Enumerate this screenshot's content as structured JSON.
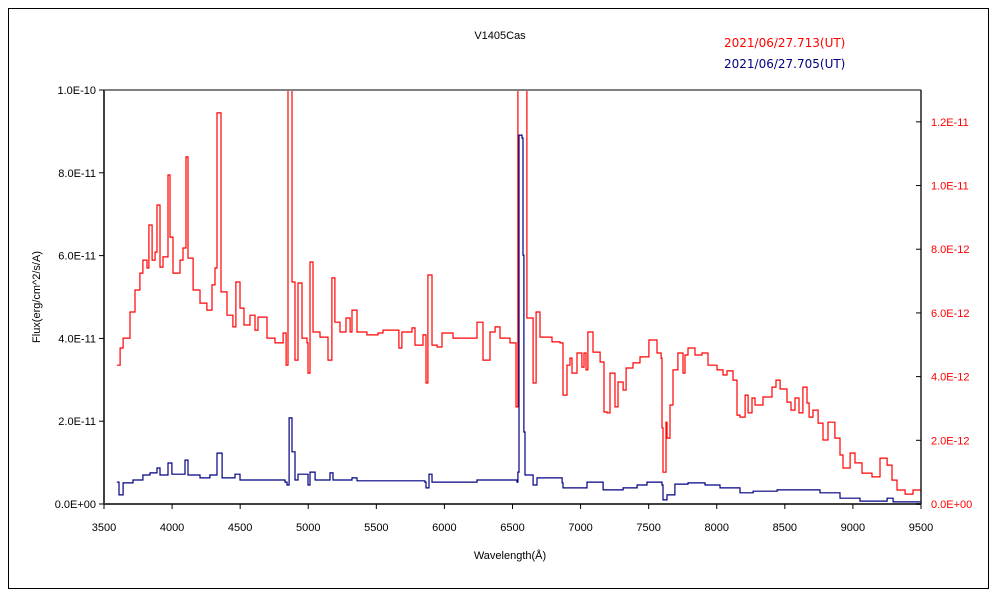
{
  "chart_data": {
    "type": "line",
    "title": "V1405Cas",
    "xlabel": "Wavelength(Å)",
    "ylabel": "Flux(erg/cm^2/s/A)",
    "xlim": [
      3500,
      9500
    ],
    "xticks": [
      3500,
      4000,
      4500,
      5000,
      5500,
      6000,
      6500,
      7000,
      7500,
      8000,
      8500,
      9000,
      9500
    ],
    "xtick_labels": [
      "3500",
      "4000",
      "4500",
      "5000",
      "5500",
      "6000",
      "6500",
      "7000",
      "7500",
      "8000",
      "8500",
      "9000",
      "9500"
    ],
    "ylim_left": [
      0,
      1e-10
    ],
    "yticks_left": [
      0,
      2e-11,
      4e-11,
      6e-11,
      8e-11,
      1e-10
    ],
    "ytick_labels_left": [
      "0.0E+00",
      "2.0E-11",
      "4.0E-11",
      "6.0E-11",
      "8.0E-11",
      "1.0E-10"
    ],
    "ylim_right": [
      0,
      1.3e-11
    ],
    "yticks_right": [
      0,
      2e-12,
      4e-12,
      6e-12,
      8e-12,
      1e-11,
      1.2e-11
    ],
    "ytick_labels_right": [
      "0.0E+00",
      "2.0E-12",
      "4.0E-12",
      "6.0E-12",
      "8.0E-12",
      "1.0E-11",
      "1.2E-11"
    ],
    "grid": false,
    "legend_placement": "top-right",
    "series": [
      {
        "name": "2021/06/27.713(UT)",
        "color": "#ff0000",
        "axis": "right",
        "unit_multiplier": 1e-12,
        "x": [
          3595,
          3618,
          3640,
          3691,
          3728,
          3764,
          3786,
          3816,
          3830,
          3853,
          3875,
          3889,
          3911,
          3933,
          3970,
          3985,
          4007,
          4058,
          4080,
          4102,
          4117,
          4154,
          4205,
          4256,
          4293,
          4315,
          4330,
          4345,
          4359,
          4403,
          4447,
          4469,
          4499,
          4528,
          4572,
          4609,
          4631,
          4697,
          4756,
          4815,
          4837,
          4851,
          4873,
          4881,
          4903,
          4925,
          4954,
          4991,
          4998,
          5013,
          5035,
          5086,
          5145,
          5174,
          5196,
          5233,
          5277,
          5307,
          5321,
          5358,
          5431,
          5512,
          5549,
          5666,
          5688,
          5762,
          5784,
          5843,
          5865,
          5879,
          5909,
          5946,
          5982,
          6063,
          6166,
          6239,
          6283,
          6335,
          6372,
          6408,
          6482,
          6526,
          6540,
          6584,
          6606,
          6651,
          6673,
          6702,
          6790,
          6849,
          6871,
          6900,
          6922,
          6937,
          6974,
          7010,
          7025,
          7040,
          7054,
          7091,
          7143,
          7172,
          7194,
          7216,
          7253,
          7275,
          7312,
          7334,
          7385,
          7436,
          7502,
          7561,
          7591,
          7598,
          7605,
          7627,
          7635,
          7657,
          7679,
          7715,
          7752,
          7767,
          7789,
          7840,
          7892,
          7936,
          8002,
          8046,
          8075,
          8119,
          8149,
          8171,
          8208,
          8230,
          8259,
          8281,
          8340,
          8406,
          8435,
          8465,
          8516,
          8545,
          8575,
          8604,
          8633,
          8663,
          8678,
          8707,
          8744,
          8780,
          8817,
          8868,
          8905,
          8927,
          8979,
          9015,
          9067,
          9140,
          9199,
          9251,
          9287,
          9324,
          9383,
          9441,
          9500
        ],
        "y": [
          4.36,
          4.9,
          5.21,
          6.03,
          6.72,
          7.25,
          7.66,
          7.41,
          8.76,
          7.66,
          7.91,
          9.39,
          7.44,
          7.76,
          10.33,
          8.38,
          7.25,
          7.66,
          8.04,
          10.9,
          7.72,
          6.72,
          6.31,
          6.09,
          6.88,
          7.41,
          12.28,
          12.28,
          6.66,
          5.93,
          5.56,
          6.97,
          6.15,
          5.62,
          5.93,
          5.46,
          5.87,
          5.21,
          5.06,
          5.37,
          4.36,
          16,
          16,
          6.97,
          4.52,
          6.94,
          5.21,
          5.06,
          4.11,
          7.6,
          5.4,
          5.24,
          4.52,
          7.1,
          5.71,
          5.4,
          5.84,
          5.4,
          6.09,
          5.4,
          5.31,
          5.37,
          5.46,
          4.9,
          5.4,
          5.53,
          4.99,
          5.31,
          3.8,
          7.19,
          4.99,
          4.93,
          5.37,
          5.21,
          5.21,
          5.71,
          4.52,
          5.4,
          5.56,
          5.21,
          5.06,
          3.05,
          16,
          16,
          5.84,
          3.8,
          6.03,
          5.24,
          5.09,
          5.06,
          3.42,
          4.36,
          4.58,
          4.11,
          4.74,
          4.3,
          4.74,
          4.21,
          5.4,
          4.77,
          4.46,
          2.89,
          2.86,
          4.11,
          3.05,
          3.83,
          3.58,
          4.27,
          4.43,
          4.62,
          5.15,
          4.74,
          4.58,
          2.39,
          1.0,
          2.57,
          2.07,
          3.11,
          4.21,
          4.74,
          4.11,
          4.68,
          4.9,
          4.68,
          4.74,
          4.36,
          4.21,
          4.05,
          4.18,
          3.89,
          2.79,
          2.73,
          3.42,
          2.86,
          3.33,
          3.11,
          3.36,
          3.67,
          3.89,
          3.61,
          3.2,
          2.95,
          3.33,
          2.86,
          3.67,
          3.17,
          2.73,
          2.95,
          2.54,
          2.01,
          2.57,
          2.07,
          1.54,
          1.13,
          1.6,
          1.29,
          0.97,
          0.85,
          1.44,
          1.22,
          0.75,
          0.44,
          0.31,
          0.44,
          0.35
        ]
      },
      {
        "name": "2021/06/27.705(UT)",
        "color": "#000080",
        "axis": "left",
        "unit_multiplier": 1e-11,
        "x": [
          3595,
          3610,
          3640,
          3713,
          3786,
          3838,
          3889,
          3911,
          3970,
          3999,
          4095,
          4117,
          4205,
          4278,
          4330,
          4367,
          4462,
          4499,
          4624,
          4829,
          4844,
          4859,
          4881,
          4903,
          4925,
          4998,
          5013,
          5050,
          5160,
          5182,
          5321,
          5358,
          5512,
          5857,
          5865,
          5887,
          5909,
          6239,
          6533,
          6540,
          6548,
          6570,
          6577,
          6584,
          6592,
          6651,
          6680,
          6864,
          6871,
          7047,
          7165,
          7312,
          7415,
          7488,
          7598,
          7605,
          7635,
          7693,
          7789,
          7914,
          8024,
          8171,
          8267,
          8443,
          8633,
          8758,
          8905,
          9052,
          9251,
          9295,
          9500
        ],
        "y": [
          0.53,
          0.22,
          0.51,
          0.58,
          0.7,
          0.75,
          0.87,
          0.7,
          0.99,
          0.72,
          1.06,
          0.7,
          0.63,
          0.7,
          1.23,
          0.63,
          0.72,
          0.58,
          0.58,
          0.53,
          0.46,
          2.08,
          1.26,
          0.58,
          0.72,
          0.46,
          0.77,
          0.58,
          0.75,
          0.58,
          0.63,
          0.56,
          0.56,
          0.53,
          0.39,
          0.72,
          0.53,
          0.58,
          0.53,
          0.77,
          8.91,
          8.84,
          6.01,
          1.74,
          0.7,
          0.46,
          0.63,
          0.51,
          0.39,
          0.53,
          0.34,
          0.39,
          0.46,
          0.53,
          0.46,
          0.1,
          0.22,
          0.48,
          0.51,
          0.46,
          0.39,
          0.27,
          0.31,
          0.34,
          0.34,
          0.27,
          0.14,
          0.07,
          0.14,
          0.05,
          0.05
        ]
      }
    ]
  }
}
